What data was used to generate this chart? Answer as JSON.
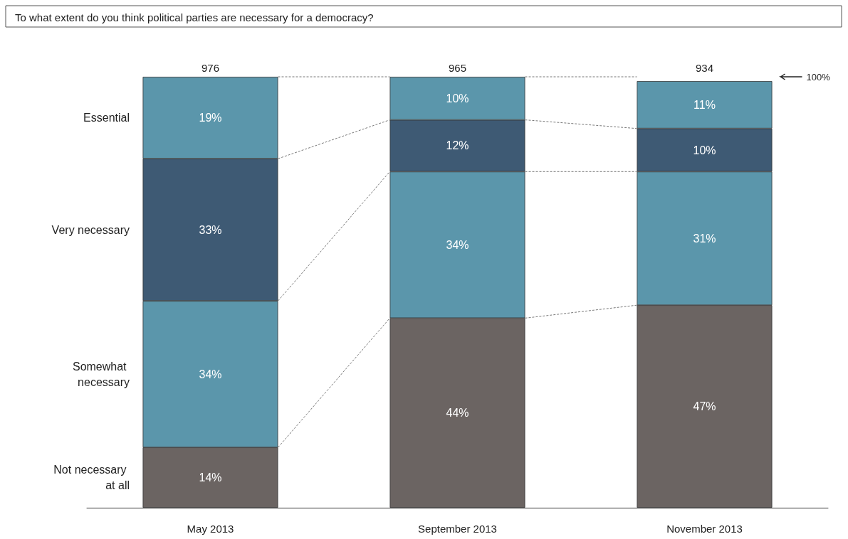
{
  "chart_data": {
    "type": "bar",
    "title": "To what extent do you think political parties are necessary for a democracy?",
    "categories": [
      "May 2013",
      "September 2013",
      "November 2013"
    ],
    "series": [
      {
        "name": "Not necessary at all",
        "color": "#6b6462",
        "values": [
          14,
          44,
          47
        ],
        "value_labels": [
          "14%",
          "44%",
          "47%"
        ]
      },
      {
        "name": "Somewhat necessary",
        "color": "#5b96ab",
        "values": [
          34,
          34,
          31
        ],
        "value_labels": [
          "34%",
          "34%",
          "31%"
        ]
      },
      {
        "name": "Very necessary",
        "color": "#3e5a74",
        "values": [
          33,
          12,
          10
        ],
        "value_labels": [
          "33%",
          "12%",
          "10%"
        ]
      },
      {
        "name": "Essential",
        "color": "#5b96ab",
        "values": [
          19,
          10,
          11
        ],
        "value_labels": [
          "19%",
          "10%",
          "11%"
        ]
      }
    ],
    "stacked": true,
    "ylim": [
      0,
      100
    ],
    "tick_labels": "x",
    "legend": false,
    "annotations": [
      "976",
      "965",
      "934",
      "100%"
    ]
  }
}
